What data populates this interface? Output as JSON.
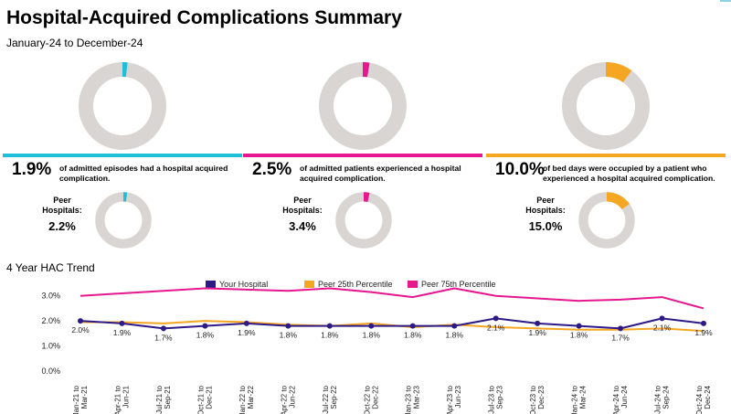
{
  "header": {
    "title": "Hospital-Acquired Complications Summary",
    "subtitle": "January-24 to December-24"
  },
  "colors": {
    "donut_track": "#d9d5d2",
    "your_hospital": "#2e1a87",
    "peer25": "#f5a623",
    "peer75": "#e6178f"
  },
  "panels": [
    {
      "value": "1.9%",
      "fraction": 0.019,
      "color": "#1fbfd8",
      "description": "of admitted episodes had a hospital acquired complication.",
      "peer_label": "Peer Hospitals:",
      "peer_value": "2.2%",
      "peer_fraction": 0.022
    },
    {
      "value": "2.5%",
      "fraction": 0.025,
      "color": "#e6178f",
      "description": "of admitted patients experienced a hospital acquired complication.",
      "peer_label": "Peer Hospitals:",
      "peer_value": "3.4%",
      "peer_fraction": 0.034
    },
    {
      "value": "10.0%",
      "fraction": 0.1,
      "color": "#f5a623",
      "description": "of bed days were occupied by a patient who experienced a hospital acquired complication.",
      "peer_label": "Peer Hospitals:",
      "peer_value": "15.0%",
      "peer_fraction": 0.15
    }
  ],
  "trend": {
    "title": "4 Year HAC Trend"
  },
  "chart_data": {
    "type": "line",
    "categories": [
      "Jan-21 to Mar-21",
      "Apr-21 to Jun-21",
      "Jul-21 to Sep-21",
      "Oct-21 to Dec-21",
      "Jan-22 to Mar-22",
      "Apr-22 to Jun-22",
      "Jul-22 to Sep-22",
      "Oct-22 to Dec-22",
      "Jan-23 to Mar-23",
      "Apr-23 to Jun-23",
      "Jul-23 to Sep-23",
      "Oct-23 to Dec-23",
      "Jan-24 to Mar-24",
      "Apr-24 to Jun-24",
      "Jul-24 to Sep-24",
      "Oct-24 to Dec-24"
    ],
    "series": [
      {
        "name": "Your Hospital",
        "color": "#2e1a87",
        "marker": true,
        "values": [
          2.0,
          1.9,
          1.7,
          1.8,
          1.9,
          1.8,
          1.8,
          1.8,
          1.8,
          1.8,
          2.1,
          1.9,
          1.8,
          1.7,
          2.1,
          1.9
        ],
        "labels": [
          "2.0%",
          "1.9%",
          "1.7%",
          "1.8%",
          "1.9%",
          "1.8%",
          "1.8%",
          "1.8%",
          "1.8%",
          "1.8%",
          "2.1%",
          "1.9%",
          "1.8%",
          "1.7%",
          "2.1%",
          "1.9%"
        ]
      },
      {
        "name": "Peer 25th Percentile",
        "color": "#f5a623",
        "values": [
          1.95,
          1.95,
          1.9,
          2.0,
          1.95,
          1.85,
          1.8,
          1.9,
          1.75,
          1.85,
          1.75,
          1.7,
          1.65,
          1.65,
          1.7,
          1.6
        ]
      },
      {
        "name": "Peer 75th Percentile",
        "color": "#e6178f",
        "values": [
          3.0,
          3.1,
          3.2,
          3.3,
          3.25,
          3.2,
          3.3,
          3.15,
          2.95,
          3.3,
          3.0,
          2.9,
          2.8,
          2.85,
          2.95,
          2.5
        ]
      }
    ],
    "yticks": [
      "0.0%",
      "1.0%",
      "2.0%",
      "3.0%"
    ],
    "ylim": [
      0,
      3.5
    ],
    "legend_position": "top",
    "grid": false
  }
}
